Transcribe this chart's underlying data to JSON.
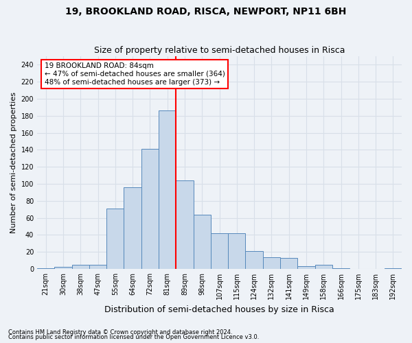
{
  "title": "19, BROOKLAND ROAD, RISCA, NEWPORT, NP11 6BH",
  "subtitle": "Size of property relative to semi-detached houses in Risca",
  "xlabel": "Distribution of semi-detached houses by size in Risca",
  "ylabel": "Number of semi-detached properties",
  "categories": [
    "21sqm",
    "30sqm",
    "38sqm",
    "47sqm",
    "55sqm",
    "64sqm",
    "72sqm",
    "81sqm",
    "89sqm",
    "98sqm",
    "107sqm",
    "115sqm",
    "124sqm",
    "132sqm",
    "141sqm",
    "149sqm",
    "158sqm",
    "166sqm",
    "175sqm",
    "183sqm",
    "192sqm"
  ],
  "values": [
    1,
    2,
    5,
    5,
    71,
    96,
    141,
    186,
    104,
    64,
    42,
    42,
    21,
    14,
    13,
    3,
    5,
    1,
    0,
    0,
    1
  ],
  "bar_color": "#c8d8ea",
  "bar_edge_color": "#5588bb",
  "highlight_label": "19 BROOKLAND ROAD: 84sqm",
  "highlight_smaller": "← 47% of semi-detached houses are smaller (364)",
  "highlight_larger": "48% of semi-detached houses are larger (373) →",
  "vline_color": "red",
  "vline_position": 7.5,
  "ylim": [
    0,
    250
  ],
  "yticks": [
    0,
    20,
    40,
    60,
    80,
    100,
    120,
    140,
    160,
    180,
    200,
    220,
    240
  ],
  "footer1": "Contains HM Land Registry data © Crown copyright and database right 2024.",
  "footer2": "Contains public sector information licensed under the Open Government Licence v3.0.",
  "bg_color": "#eef2f7",
  "grid_color": "#d8dfe8",
  "title_fontsize": 10,
  "subtitle_fontsize": 9,
  "xlabel_fontsize": 9,
  "ylabel_fontsize": 8,
  "tick_fontsize": 7,
  "annot_fontsize": 7.5
}
